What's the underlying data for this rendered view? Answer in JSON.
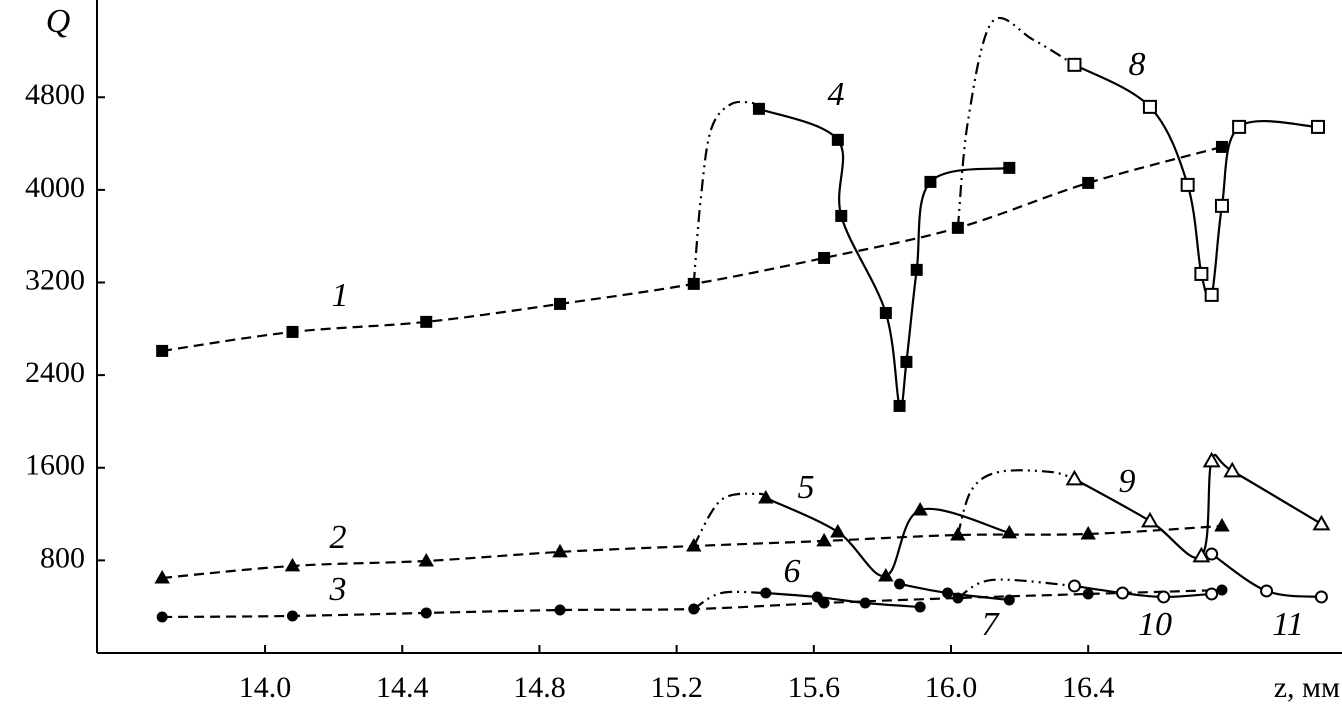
{
  "chart_data": {
    "type": "line",
    "color": "#000000",
    "ylabel": "Q",
    "xlabel": "z, мм",
    "xlim": [
      13.51,
      17.14
    ],
    "ylim": [
      0,
      5640
    ],
    "xticks": [
      {
        "value": 14.0,
        "label": "14.0"
      },
      {
        "value": 14.4,
        "label": "14.4"
      },
      {
        "value": 14.8,
        "label": "14.8"
      },
      {
        "value": 15.2,
        "label": "15.2"
      },
      {
        "value": 15.6,
        "label": "15.6"
      },
      {
        "value": 16.0,
        "label": "16.0"
      },
      {
        "value": 16.4,
        "label": "16.4"
      }
    ],
    "yticks": [
      800,
      1600,
      2400,
      3200,
      4000,
      4800
    ],
    "series": [
      {
        "name": "1",
        "style": "dashed",
        "marker": "square-filled",
        "x": [
          13.7,
          14.08,
          14.47,
          14.86,
          15.25,
          15.63,
          16.02,
          16.4,
          16.79
        ],
        "values": [
          2609,
          2773,
          2860,
          3015,
          3188,
          3412,
          3672,
          4060,
          4371
        ]
      },
      {
        "name": "2",
        "style": "dashed",
        "marker": "triangle-filled",
        "x": [
          13.7,
          14.08,
          14.47,
          14.86,
          15.25,
          15.63,
          16.02,
          16.4,
          16.79
        ],
        "values": [
          648,
          752,
          795,
          873,
          924,
          968,
          1019,
          1028,
          1097
        ]
      },
      {
        "name": "3",
        "style": "dashed",
        "marker": "circle-filled",
        "x": [
          13.7,
          14.08,
          14.47,
          14.86,
          15.25,
          15.63,
          16.02,
          16.4,
          16.79
        ],
        "values": [
          311,
          320,
          346,
          371,
          380,
          432,
          475,
          510,
          544
        ]
      },
      {
        "style": "dashdot",
        "marker": "none",
        "x": [
          15.25,
          15.27,
          15.3,
          15.36,
          15.44
        ],
        "values": [
          3188,
          3913,
          4518,
          4743,
          4743
        ]
      },
      {
        "style": "dashdot",
        "marker": "none",
        "x": [
          16.02,
          16.05,
          16.12,
          16.24,
          16.36
        ],
        "values": [
          3672,
          4605,
          5451,
          5296,
          5080
        ]
      },
      {
        "style": "dashdot",
        "marker": "none",
        "x": [
          15.25,
          15.33,
          15.44,
          15.46
        ],
        "values": [
          924,
          1322,
          1374,
          1339
        ]
      },
      {
        "style": "dashdot",
        "marker": "none",
        "x": [
          16.02,
          16.06,
          16.14,
          16.29,
          16.36
        ],
        "values": [
          1019,
          1408,
          1564,
          1564,
          1503
        ]
      },
      {
        "style": "dashdot",
        "marker": "none",
        "x": [
          15.25,
          15.33,
          15.46
        ],
        "values": [
          380,
          518,
          518
        ]
      },
      {
        "style": "dashdot",
        "marker": "none",
        "x": [
          16.02,
          16.12,
          16.36
        ],
        "values": [
          475,
          631,
          579
        ]
      },
      {
        "name": "4",
        "style": "solid",
        "marker": "square-filled",
        "x": [
          15.44,
          15.67,
          15.68,
          15.81,
          15.85,
          15.87,
          15.9,
          15.94,
          16.17
        ],
        "values": [
          4700,
          4432,
          3775,
          2937,
          2134,
          2514,
          3309,
          4069,
          4190
        ]
      },
      {
        "name": "8",
        "style": "solid",
        "marker": "square-open",
        "x": [
          16.36,
          16.58,
          16.69,
          16.73,
          16.76,
          16.79,
          16.84,
          17.07
        ],
        "values": [
          5080,
          4717,
          4043,
          3274,
          3093,
          3862,
          4544,
          4544
        ]
      },
      {
        "name": "5",
        "style": "solid",
        "marker": "triangle-filled",
        "x": [
          15.46,
          15.67,
          15.81,
          15.91,
          16.17
        ],
        "values": [
          1339,
          1045,
          665,
          1235,
          1037
        ]
      },
      {
        "name": "9",
        "style": "solid",
        "marker": "triangle-open",
        "x": [
          16.36,
          16.58,
          16.73,
          16.76,
          16.82,
          17.08
        ],
        "values": [
          1503,
          1140,
          838,
          1659,
          1572,
          1114
        ]
      },
      {
        "name": "6",
        "style": "solid",
        "marker": "circle-filled",
        "x": [
          15.46,
          15.61,
          15.75,
          15.91
        ],
        "values": [
          518,
          484,
          432,
          397
        ]
      },
      {
        "name": "7",
        "style": "solid",
        "marker": "circle-filled",
        "x": [
          15.85,
          15.99,
          16.17
        ],
        "values": [
          596,
          518,
          458
        ]
      },
      {
        "name": "10",
        "style": "solid",
        "marker": "circle-open",
        "x": [
          16.36,
          16.5,
          16.62,
          16.76
        ],
        "values": [
          579,
          518,
          484,
          510
        ]
      },
      {
        "name": "11",
        "style": "solid",
        "marker": "circle-open",
        "x": [
          16.76,
          16.92,
          17.08
        ],
        "values": [
          855,
          536,
          484
        ]
      }
    ]
  }
}
